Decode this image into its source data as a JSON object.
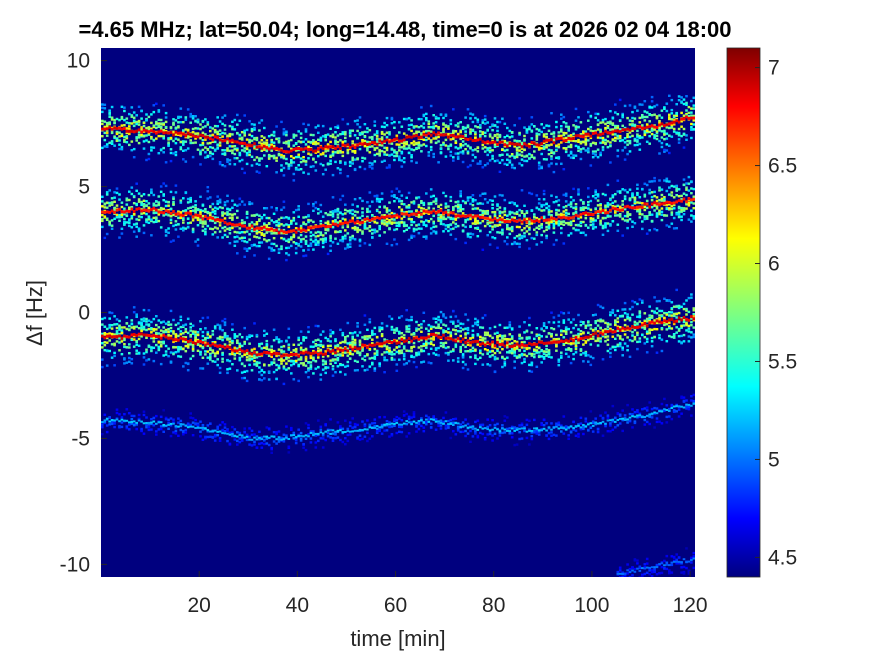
{
  "chart_data": {
    "type": "heatmap",
    "title": "=4.65 MHz;  lat=50.04; long=14.48, time=0 is at 2026 02 04 18:00",
    "xlabel": "time [min]",
    "ylabel": "Δf [Hz]",
    "xlim": [
      0,
      121
    ],
    "ylim": [
      -10.5,
      10.5
    ],
    "xticks": [
      20,
      40,
      60,
      80,
      100,
      120
    ],
    "xtick_labels": [
      "20",
      "40",
      "60",
      "80",
      "100",
      "120"
    ],
    "yticks": [
      10,
      5,
      0,
      -5,
      -10
    ],
    "ytick_labels": [
      "10",
      "5",
      "0",
      "-5",
      "-10"
    ],
    "colorbar": {
      "colormap": "jet",
      "clim": [
        4.4,
        7.1
      ],
      "ticks": [
        7,
        6.5,
        6,
        5.5,
        5,
        4.5
      ],
      "tick_labels": [
        "7",
        "6.5",
        "6",
        "5.5",
        "5",
        "4.5"
      ]
    },
    "background_color": "#00007f",
    "traces": [
      {
        "x": [
          0,
          10,
          20,
          30,
          37,
          45,
          55,
          62,
          68,
          75,
          85,
          95,
          105,
          113,
          121
        ],
        "y": [
          7.3,
          7.2,
          7.0,
          6.7,
          6.4,
          6.5,
          6.7,
          6.9,
          7.1,
          6.9,
          6.6,
          6.9,
          7.2,
          7.4,
          7.8
        ],
        "intensity": 6.9
      },
      {
        "x": [
          0,
          10,
          20,
          30,
          37,
          45,
          55,
          62,
          68,
          75,
          85,
          95,
          105,
          113,
          121
        ],
        "y": [
          4.0,
          4.1,
          3.8,
          3.4,
          3.2,
          3.4,
          3.7,
          3.9,
          4.0,
          3.8,
          3.6,
          3.8,
          4.1,
          4.3,
          4.5
        ],
        "intensity": 6.8
      },
      {
        "x": [
          0,
          10,
          20,
          30,
          37,
          45,
          55,
          62,
          68,
          75,
          85,
          95,
          105,
          113,
          121
        ],
        "y": [
          -1.0,
          -0.9,
          -1.2,
          -1.6,
          -1.7,
          -1.6,
          -1.3,
          -1.1,
          -0.9,
          -1.2,
          -1.3,
          -1.1,
          -0.7,
          -0.4,
          -0.2
        ],
        "intensity": 6.9
      },
      {
        "x": [
          0,
          10,
          20,
          30,
          37,
          45,
          55,
          62,
          68,
          75,
          85,
          95,
          105,
          113,
          121
        ],
        "y": [
          -4.3,
          -4.4,
          -4.6,
          -5.0,
          -5.0,
          -4.8,
          -4.6,
          -4.4,
          -4.3,
          -4.6,
          -4.7,
          -4.6,
          -4.3,
          -4.0,
          -3.6
        ],
        "intensity": 5.3
      },
      {
        "x": [
          105,
          110,
          115,
          121
        ],
        "y": [
          -10.4,
          -10.2,
          -10.0,
          -9.8
        ],
        "intensity": 5.1
      }
    ]
  }
}
